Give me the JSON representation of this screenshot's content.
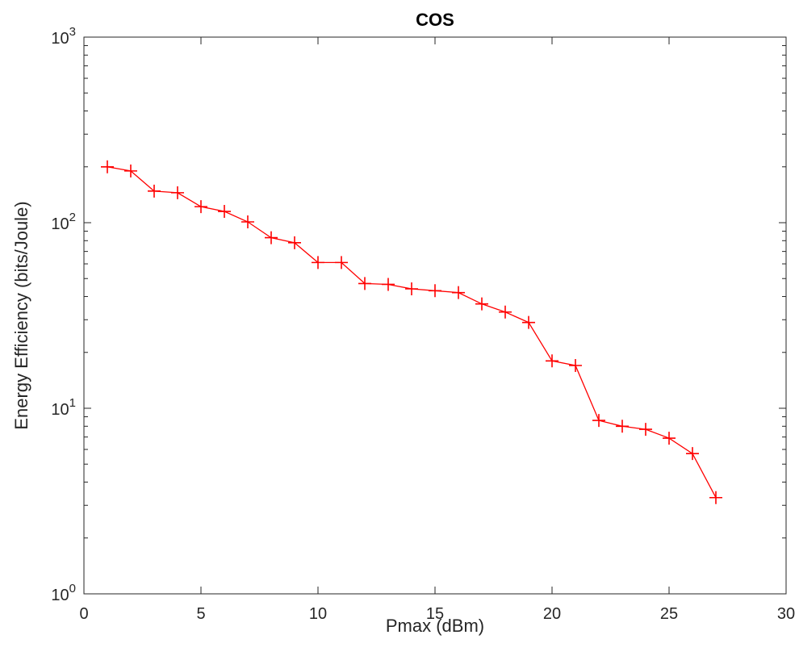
{
  "chart_data": {
    "type": "line",
    "title": "COS",
    "xlabel": "Pmax (dBm)",
    "ylabel": "Energy Efficiency (bits/Joule)",
    "xlim": [
      0,
      30
    ],
    "ylim": [
      1,
      1000
    ],
    "yscale": "log",
    "xticks": [
      0,
      5,
      10,
      15,
      20,
      25,
      30
    ],
    "xtick_labels": [
      "0",
      "5",
      "10",
      "15",
      "20",
      "25",
      "30"
    ],
    "yticks": [
      1,
      10,
      100,
      1000
    ],
    "ytick_labels": [
      {
        "base": "10",
        "exp": "0"
      },
      {
        "base": "10",
        "exp": "1"
      },
      {
        "base": "10",
        "exp": "2"
      },
      {
        "base": "10",
        "exp": "3"
      }
    ],
    "grid": false,
    "series": [
      {
        "color": "#ff0000",
        "marker": "+",
        "x": [
          1,
          2,
          3,
          4,
          5,
          6,
          7,
          8,
          9,
          10,
          11,
          12,
          13,
          14,
          15,
          16,
          17,
          18,
          19,
          20,
          21,
          22,
          23,
          24,
          25,
          26,
          27
        ],
        "y": [
          200,
          190,
          148,
          145,
          122,
          115,
          101,
          83,
          78,
          61,
          61,
          47,
          46.5,
          44,
          43,
          42,
          36.5,
          33,
          29,
          18,
          17,
          8.6,
          8.0,
          7.7,
          6.9,
          5.7,
          3.3
        ]
      }
    ]
  }
}
